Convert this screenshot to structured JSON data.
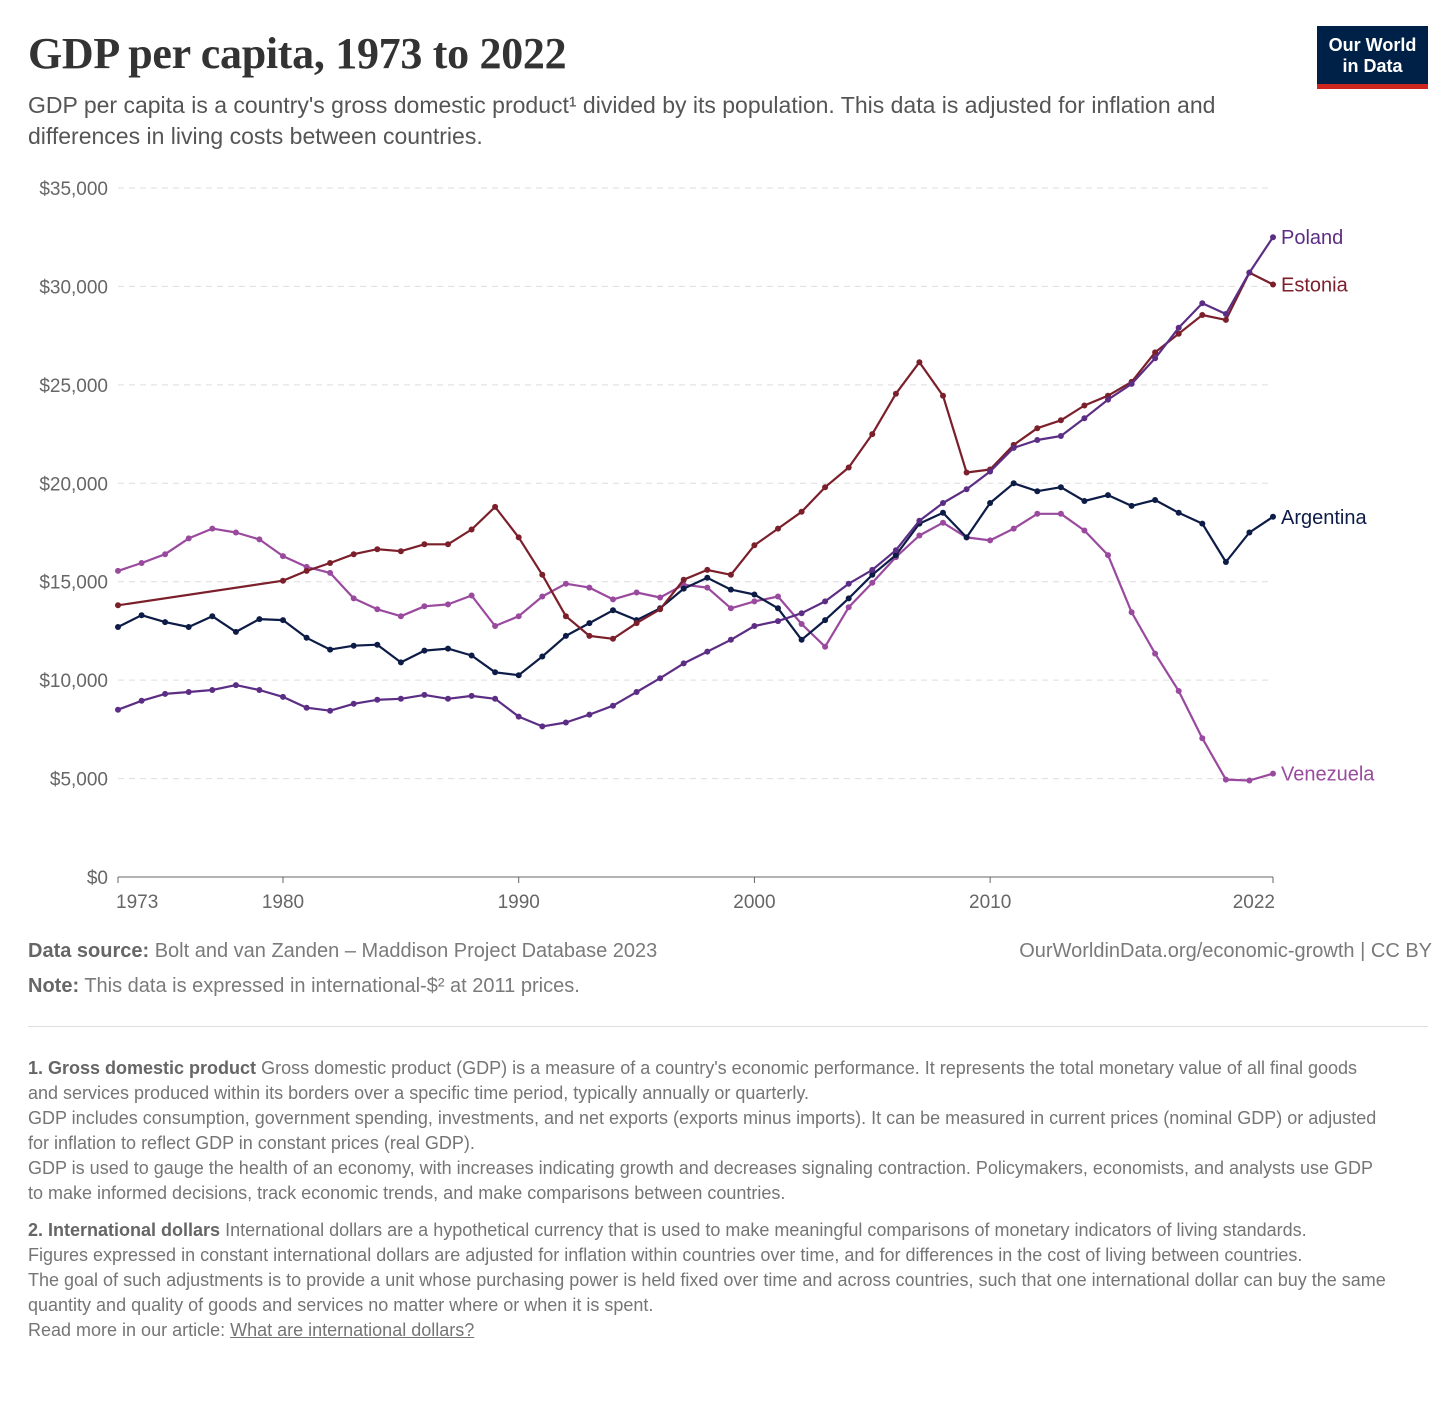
{
  "title": "GDP per capita, 1973 to 2022",
  "subtitle": "GDP per capita is a country's gross domestic product¹ divided by its population. This data is adjusted for inflation and differences in living costs between countries.",
  "logo": {
    "line1": "Our World",
    "line2": "in Data",
    "background": "#002147",
    "accent": "#ce261e"
  },
  "footer": {
    "source_label": "Data source:",
    "source_text": "Bolt and van Zanden – Maddison Project Database 2023",
    "note_label": "Note:",
    "note_text": "This data is expressed in international-$² at 2011 prices.",
    "url_text": "OurWorldinData.org/economic-growth",
    "license": "| CC BY"
  },
  "footnotes": {
    "fn1": {
      "label": "1. Gross domestic product",
      "p1": "Gross domestic product (GDP) is a measure of a country's economic performance. It represents the total monetary value of all final goods and services produced within its borders over a specific time period, typically annually or quarterly.",
      "p2": "GDP includes consumption, government spending, investments, and net exports (exports minus imports). It can be measured in current prices (nominal GDP) or adjusted for inflation to reflect GDP in constant prices (real GDP).",
      "p3": "GDP is used to gauge the health of an economy, with increases indicating growth and decreases signaling contraction. Policymakers, economists, and analysts use GDP to make informed decisions, track economic trends, and make comparisons between countries."
    },
    "fn2": {
      "label": "2. International dollars",
      "p1": "International dollars are a hypothetical currency that is used to make meaningful comparisons of monetary indicators of living standards.",
      "p2": "Figures expressed in constant international dollars are adjusted for inflation within countries over time, and for differences in the cost of living between countries.",
      "p3": "The goal of such adjustments is to provide a unit whose purchasing power is held fixed over time and across countries, such that one international dollar can buy the same quantity and quality of goods and services no matter where or when it is spent.",
      "read_more": "Read more in our article:",
      "link_text": "What are international dollars?"
    }
  },
  "chart_data": {
    "type": "line",
    "title": "GDP per capita, 1973 to 2022",
    "xlabel": "",
    "ylabel": "",
    "xlim": [
      1973,
      2022
    ],
    "ylim": [
      0,
      35000
    ],
    "x_ticks": [
      1973,
      1980,
      1990,
      2000,
      2010,
      2022
    ],
    "y_ticks": [
      0,
      5000,
      10000,
      15000,
      20000,
      25000,
      30000,
      35000
    ],
    "y_tick_labels": [
      "$0",
      "$5,000",
      "$10,000",
      "$15,000",
      "$20,000",
      "$25,000",
      "$30,000",
      "$35,000"
    ],
    "grid": "horizontal dashed",
    "legend": "labels at line ends (right)",
    "series": [
      {
        "name": "Poland",
        "color": "#5c2d84",
        "x": [
          1973,
          1974,
          1975,
          1976,
          1977,
          1978,
          1979,
          1980,
          1981,
          1982,
          1983,
          1984,
          1985,
          1986,
          1987,
          1988,
          1989,
          1990,
          1991,
          1992,
          1993,
          1994,
          1995,
          1996,
          1997,
          1998,
          1999,
          2000,
          2001,
          2002,
          2003,
          2004,
          2005,
          2006,
          2007,
          2008,
          2009,
          2010,
          2011,
          2012,
          2013,
          2014,
          2015,
          2016,
          2017,
          2018,
          2019,
          2020,
          2021,
          2022
        ],
        "values": [
          8500,
          8950,
          9300,
          9400,
          9500,
          9750,
          9500,
          9150,
          8600,
          8450,
          8800,
          9000,
          9050,
          9250,
          9050,
          9200,
          9050,
          8150,
          7650,
          7850,
          8250,
          8700,
          9400,
          10100,
          10850,
          11450,
          12050,
          12750,
          13000,
          13400,
          14000,
          14900,
          15600,
          16600,
          18100,
          19000,
          19700,
          20600,
          21800,
          22200,
          22400,
          23300,
          24250,
          25050,
          26350,
          27900,
          29150,
          28600,
          30700,
          32500
        ]
      },
      {
        "name": "Estonia",
        "color": "#7b1f2b",
        "x": [
          1973,
          1980,
          1981,
          1982,
          1983,
          1984,
          1985,
          1986,
          1987,
          1988,
          1989,
          1990,
          1991,
          1992,
          1993,
          1994,
          1995,
          1996,
          1997,
          1998,
          1999,
          2000,
          2001,
          2002,
          2003,
          2004,
          2005,
          2006,
          2007,
          2008,
          2009,
          2010,
          2011,
          2012,
          2013,
          2014,
          2015,
          2016,
          2017,
          2018,
          2019,
          2020,
          2021,
          2022
        ],
        "values": [
          13800,
          15050,
          15550,
          15950,
          16400,
          16650,
          16550,
          16900,
          16900,
          17650,
          18800,
          17250,
          15350,
          13250,
          12250,
          12100,
          12900,
          13600,
          15100,
          15600,
          15350,
          16850,
          17700,
          18550,
          19800,
          20800,
          22500,
          24550,
          26150,
          24450,
          20550,
          20700,
          21950,
          22800,
          23200,
          23950,
          24450,
          25150,
          26650,
          27600,
          28550,
          28300,
          30700,
          30100
        ]
      },
      {
        "name": "Argentina",
        "color": "#0d1c47",
        "x": [
          1973,
          1974,
          1975,
          1976,
          1977,
          1978,
          1979,
          1980,
          1981,
          1982,
          1983,
          1984,
          1985,
          1986,
          1987,
          1988,
          1989,
          1990,
          1991,
          1992,
          1993,
          1994,
          1995,
          1996,
          1997,
          1998,
          1999,
          2000,
          2001,
          2002,
          2003,
          2004,
          2005,
          2006,
          2007,
          2008,
          2009,
          2010,
          2011,
          2012,
          2013,
          2014,
          2015,
          2016,
          2017,
          2018,
          2019,
          2020,
          2021,
          2022
        ],
        "values": [
          12700,
          13300,
          12950,
          12700,
          13250,
          12450,
          13100,
          13050,
          12150,
          11550,
          11750,
          11800,
          10900,
          11500,
          11600,
          11250,
          10400,
          10250,
          11200,
          12250,
          12900,
          13550,
          13050,
          13650,
          14650,
          15200,
          14600,
          14350,
          13650,
          12050,
          13050,
          14150,
          15350,
          16350,
          17950,
          18500,
          17250,
          19000,
          20000,
          19600,
          19800,
          19100,
          19400,
          18850,
          19150,
          18500,
          17950,
          16000,
          17500,
          18300
        ]
      },
      {
        "name": "Venezuela",
        "color": "#9a4a9e",
        "x": [
          1973,
          1974,
          1975,
          1976,
          1977,
          1978,
          1979,
          1980,
          1981,
          1982,
          1983,
          1984,
          1985,
          1986,
          1987,
          1988,
          1989,
          1990,
          1991,
          1992,
          1993,
          1994,
          1995,
          1996,
          1997,
          1998,
          1999,
          2000,
          2001,
          2002,
          2003,
          2004,
          2005,
          2006,
          2007,
          2008,
          2009,
          2010,
          2011,
          2012,
          2013,
          2014,
          2015,
          2016,
          2017,
          2018,
          2019,
          2020,
          2021,
          2022
        ],
        "values": [
          15550,
          15950,
          16400,
          17200,
          17700,
          17500,
          17150,
          16300,
          15750,
          15450,
          14150,
          13600,
          13250,
          13750,
          13850,
          14300,
          12750,
          13250,
          14250,
          14900,
          14700,
          14100,
          14450,
          14200,
          14850,
          14700,
          13650,
          14000,
          14250,
          12850,
          11700,
          13700,
          14950,
          16250,
          17350,
          18000,
          17250,
          17100,
          17700,
          18450,
          18450,
          17600,
          16350,
          13450,
          11350,
          9450,
          7050,
          4950,
          4900,
          5250
        ]
      }
    ]
  }
}
